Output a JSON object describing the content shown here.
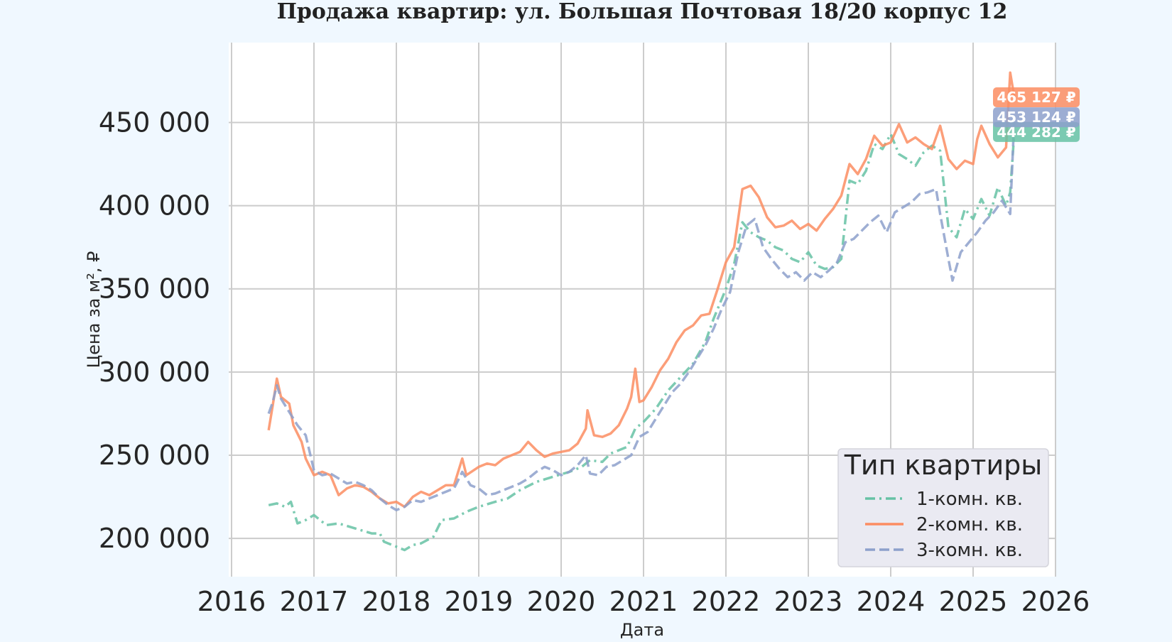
{
  "chart_data": {
    "type": "line",
    "title": "Продажа квартир: ул. Большая Почтовая 18/20 корпус 12",
    "xlabel": "Дата",
    "ylabel": "Цена за м², ₽",
    "x_range": [
      2016.0,
      2026.0
    ],
    "x_ticks": [
      2016,
      2017,
      2018,
      2019,
      2020,
      2021,
      2022,
      2023,
      2024,
      2025,
      2026
    ],
    "x_tick_labels": [
      "2016",
      "2017",
      "2018",
      "2019",
      "2020",
      "2021",
      "2022",
      "2023",
      "2024",
      "2025",
      "2026"
    ],
    "ylim": [
      177000,
      498000
    ],
    "y_ticks": [
      200000,
      250000,
      300000,
      350000,
      400000,
      450000
    ],
    "y_tick_labels": [
      "200 000",
      "250 000",
      "300 000",
      "350 000",
      "400 000",
      "450 000"
    ],
    "grid": true,
    "legend": {
      "title": "Тип квартиры",
      "placement": "lower-right"
    },
    "series": [
      {
        "name": "1-комн. кв.",
        "color": "#66c2a5",
        "dash": "dashdot",
        "end_label": "444 282 ₽",
        "end_value": 444282,
        "points": [
          [
            2016.45,
            220000
          ],
          [
            2016.55,
            221000
          ],
          [
            2016.65,
            219000
          ],
          [
            2016.72,
            222000
          ],
          [
            2016.8,
            209000
          ],
          [
            2016.9,
            211000
          ],
          [
            2017.0,
            214000
          ],
          [
            2017.15,
            208000
          ],
          [
            2017.3,
            209000
          ],
          [
            2017.5,
            206000
          ],
          [
            2017.7,
            203000
          ],
          [
            2017.8,
            203000
          ],
          [
            2017.85,
            198000
          ],
          [
            2017.95,
            196000
          ],
          [
            2018.1,
            193000
          ],
          [
            2018.2,
            196000
          ],
          [
            2018.3,
            197000
          ],
          [
            2018.45,
            201000
          ],
          [
            2018.55,
            211000
          ],
          [
            2018.7,
            212000
          ],
          [
            2018.85,
            216000
          ],
          [
            2019.0,
            219000
          ],
          [
            2019.2,
            222000
          ],
          [
            2019.35,
            224000
          ],
          [
            2019.5,
            229000
          ],
          [
            2019.7,
            234000
          ],
          [
            2019.9,
            237000
          ],
          [
            2020.1,
            240000
          ],
          [
            2020.25,
            243000
          ],
          [
            2020.35,
            247000
          ],
          [
            2020.5,
            246000
          ],
          [
            2020.6,
            251000
          ],
          [
            2020.7,
            253000
          ],
          [
            2020.8,
            255000
          ],
          [
            2020.9,
            266000
          ],
          [
            2021.0,
            270000
          ],
          [
            2021.15,
            278000
          ],
          [
            2021.3,
            289000
          ],
          [
            2021.45,
            297000
          ],
          [
            2021.6,
            305000
          ],
          [
            2021.75,
            318000
          ],
          [
            2021.85,
            332000
          ],
          [
            2022.0,
            350000
          ],
          [
            2022.1,
            365000
          ],
          [
            2022.2,
            390000
          ],
          [
            2022.3,
            384000
          ],
          [
            2022.4,
            381000
          ],
          [
            2022.5,
            379000
          ],
          [
            2022.6,
            375000
          ],
          [
            2022.7,
            373000
          ],
          [
            2022.8,
            368000
          ],
          [
            2022.9,
            366000
          ],
          [
            2023.0,
            372000
          ],
          [
            2023.1,
            364000
          ],
          [
            2023.2,
            362000
          ],
          [
            2023.3,
            363000
          ],
          [
            2023.4,
            368000
          ],
          [
            2023.5,
            415000
          ],
          [
            2023.6,
            413000
          ],
          [
            2023.7,
            421000
          ],
          [
            2023.8,
            437000
          ],
          [
            2023.9,
            434000
          ],
          [
            2024.0,
            443000
          ],
          [
            2024.1,
            431000
          ],
          [
            2024.2,
            428000
          ],
          [
            2024.3,
            424000
          ],
          [
            2024.4,
            432000
          ],
          [
            2024.5,
            436000
          ],
          [
            2024.6,
            433000
          ],
          [
            2024.7,
            387000
          ],
          [
            2024.8,
            381000
          ],
          [
            2024.9,
            398000
          ],
          [
            2025.0,
            392000
          ],
          [
            2025.1,
            404000
          ],
          [
            2025.2,
            394000
          ],
          [
            2025.3,
            411000
          ],
          [
            2025.4,
            400000
          ],
          [
            2025.45,
            408000
          ],
          [
            2025.5,
            444282
          ]
        ]
      },
      {
        "name": "2-комн. кв.",
        "color": "#fc8d62",
        "dash": "solid",
        "end_label": "465 127 ₽",
        "end_value": 465127,
        "points": [
          [
            2016.45,
            265000
          ],
          [
            2016.5,
            280000
          ],
          [
            2016.55,
            296000
          ],
          [
            2016.6,
            285000
          ],
          [
            2016.7,
            281000
          ],
          [
            2016.75,
            268000
          ],
          [
            2016.85,
            258000
          ],
          [
            2016.9,
            248000
          ],
          [
            2017.0,
            238000
          ],
          [
            2017.1,
            240000
          ],
          [
            2017.2,
            238000
          ],
          [
            2017.3,
            226000
          ],
          [
            2017.4,
            230000
          ],
          [
            2017.5,
            232000
          ],
          [
            2017.6,
            231000
          ],
          [
            2017.7,
            228000
          ],
          [
            2017.8,
            224000
          ],
          [
            2017.9,
            221000
          ],
          [
            2018.0,
            222000
          ],
          [
            2018.1,
            219000
          ],
          [
            2018.2,
            225000
          ],
          [
            2018.3,
            228000
          ],
          [
            2018.4,
            226000
          ],
          [
            2018.5,
            229000
          ],
          [
            2018.6,
            232000
          ],
          [
            2018.7,
            232000
          ],
          [
            2018.8,
            248000
          ],
          [
            2018.85,
            238000
          ],
          [
            2019.0,
            243000
          ],
          [
            2019.1,
            245000
          ],
          [
            2019.2,
            244000
          ],
          [
            2019.3,
            248000
          ],
          [
            2019.4,
            250000
          ],
          [
            2019.5,
            252000
          ],
          [
            2019.6,
            258000
          ],
          [
            2019.7,
            253000
          ],
          [
            2019.8,
            249000
          ],
          [
            2019.9,
            251000
          ],
          [
            2020.0,
            252000
          ],
          [
            2020.1,
            253000
          ],
          [
            2020.2,
            257000
          ],
          [
            2020.3,
            266000
          ],
          [
            2020.32,
            277000
          ],
          [
            2020.4,
            262000
          ],
          [
            2020.5,
            261000
          ],
          [
            2020.6,
            263000
          ],
          [
            2020.7,
            268000
          ],
          [
            2020.8,
            278000
          ],
          [
            2020.85,
            285000
          ],
          [
            2020.9,
            302000
          ],
          [
            2020.95,
            282000
          ],
          [
            2021.0,
            283000
          ],
          [
            2021.1,
            291000
          ],
          [
            2021.2,
            301000
          ],
          [
            2021.3,
            308000
          ],
          [
            2021.4,
            318000
          ],
          [
            2021.5,
            325000
          ],
          [
            2021.6,
            328000
          ],
          [
            2021.7,
            334000
          ],
          [
            2021.8,
            335000
          ],
          [
            2021.9,
            350000
          ],
          [
            2022.0,
            366000
          ],
          [
            2022.1,
            375000
          ],
          [
            2022.2,
            410000
          ],
          [
            2022.3,
            412000
          ],
          [
            2022.4,
            405000
          ],
          [
            2022.5,
            393000
          ],
          [
            2022.6,
            387000
          ],
          [
            2022.7,
            388000
          ],
          [
            2022.8,
            391000
          ],
          [
            2022.9,
            386000
          ],
          [
            2023.0,
            389000
          ],
          [
            2023.1,
            385000
          ],
          [
            2023.2,
            392000
          ],
          [
            2023.3,
            398000
          ],
          [
            2023.4,
            406000
          ],
          [
            2023.5,
            425000
          ],
          [
            2023.6,
            419000
          ],
          [
            2023.7,
            428000
          ],
          [
            2023.8,
            442000
          ],
          [
            2023.9,
            436000
          ],
          [
            2024.0,
            438000
          ],
          [
            2024.1,
            449000
          ],
          [
            2024.2,
            438000
          ],
          [
            2024.3,
            441000
          ],
          [
            2024.4,
            437000
          ],
          [
            2024.5,
            434000
          ],
          [
            2024.6,
            448000
          ],
          [
            2024.7,
            428000
          ],
          [
            2024.8,
            422000
          ],
          [
            2024.9,
            427000
          ],
          [
            2025.0,
            425000
          ],
          [
            2025.05,
            440000
          ],
          [
            2025.1,
            448000
          ],
          [
            2025.2,
            437000
          ],
          [
            2025.3,
            429000
          ],
          [
            2025.4,
            435000
          ],
          [
            2025.45,
            480000
          ],
          [
            2025.5,
            465127
          ]
        ]
      },
      {
        "name": "3-комн. кв.",
        "color": "#8da0cb",
        "dash": "dashed",
        "end_label": "453 124 ₽",
        "end_value": 453124,
        "points": [
          [
            2016.45,
            275000
          ],
          [
            2016.5,
            282000
          ],
          [
            2016.55,
            292000
          ],
          [
            2016.6,
            284000
          ],
          [
            2016.7,
            276000
          ],
          [
            2016.8,
            268000
          ],
          [
            2016.9,
            262000
          ],
          [
            2017.0,
            241000
          ],
          [
            2017.1,
            238000
          ],
          [
            2017.2,
            239000
          ],
          [
            2017.3,
            236000
          ],
          [
            2017.4,
            233000
          ],
          [
            2017.5,
            234000
          ],
          [
            2017.6,
            232000
          ],
          [
            2017.7,
            229000
          ],
          [
            2017.8,
            224000
          ],
          [
            2017.9,
            220000
          ],
          [
            2018.0,
            217000
          ],
          [
            2018.1,
            219000
          ],
          [
            2018.2,
            223000
          ],
          [
            2018.3,
            222000
          ],
          [
            2018.4,
            224000
          ],
          [
            2018.5,
            226000
          ],
          [
            2018.6,
            228000
          ],
          [
            2018.7,
            230000
          ],
          [
            2018.8,
            240000
          ],
          [
            2018.9,
            232000
          ],
          [
            2019.0,
            230000
          ],
          [
            2019.1,
            226000
          ],
          [
            2019.2,
            227000
          ],
          [
            2019.3,
            229000
          ],
          [
            2019.4,
            231000
          ],
          [
            2019.5,
            233000
          ],
          [
            2019.6,
            236000
          ],
          [
            2019.7,
            240000
          ],
          [
            2019.8,
            243000
          ],
          [
            2019.9,
            241000
          ],
          [
            2020.0,
            238000
          ],
          [
            2020.1,
            240000
          ],
          [
            2020.2,
            244000
          ],
          [
            2020.3,
            250000
          ],
          [
            2020.35,
            239000
          ],
          [
            2020.45,
            238000
          ],
          [
            2020.55,
            243000
          ],
          [
            2020.65,
            244000
          ],
          [
            2020.75,
            247000
          ],
          [
            2020.85,
            250000
          ],
          [
            2020.95,
            261000
          ],
          [
            2021.05,
            264000
          ],
          [
            2021.15,
            272000
          ],
          [
            2021.25,
            280000
          ],
          [
            2021.35,
            288000
          ],
          [
            2021.45,
            293000
          ],
          [
            2021.55,
            300000
          ],
          [
            2021.65,
            308000
          ],
          [
            2021.75,
            316000
          ],
          [
            2021.85,
            326000
          ],
          [
            2021.95,
            338000
          ],
          [
            2022.05,
            348000
          ],
          [
            2022.15,
            372000
          ],
          [
            2022.25,
            388000
          ],
          [
            2022.35,
            392000
          ],
          [
            2022.45,
            375000
          ],
          [
            2022.55,
            368000
          ],
          [
            2022.65,
            362000
          ],
          [
            2022.75,
            357000
          ],
          [
            2022.85,
            360000
          ],
          [
            2022.95,
            355000
          ],
          [
            2023.05,
            360000
          ],
          [
            2023.15,
            357000
          ],
          [
            2023.25,
            361000
          ],
          [
            2023.35,
            366000
          ],
          [
            2023.45,
            378000
          ],
          [
            2023.55,
            380000
          ],
          [
            2023.65,
            385000
          ],
          [
            2023.75,
            390000
          ],
          [
            2023.85,
            394000
          ],
          [
            2023.95,
            384000
          ],
          [
            2024.05,
            396000
          ],
          [
            2024.15,
            399000
          ],
          [
            2024.25,
            402000
          ],
          [
            2024.35,
            407000
          ],
          [
            2024.45,
            408000
          ],
          [
            2024.55,
            410000
          ],
          [
            2024.6,
            395000
          ],
          [
            2024.7,
            368000
          ],
          [
            2024.75,
            355000
          ],
          [
            2024.85,
            372000
          ],
          [
            2024.95,
            378000
          ],
          [
            2025.05,
            384000
          ],
          [
            2025.15,
            391000
          ],
          [
            2025.25,
            396000
          ],
          [
            2025.35,
            403000
          ],
          [
            2025.45,
            395000
          ],
          [
            2025.5,
            453124
          ]
        ]
      }
    ]
  }
}
